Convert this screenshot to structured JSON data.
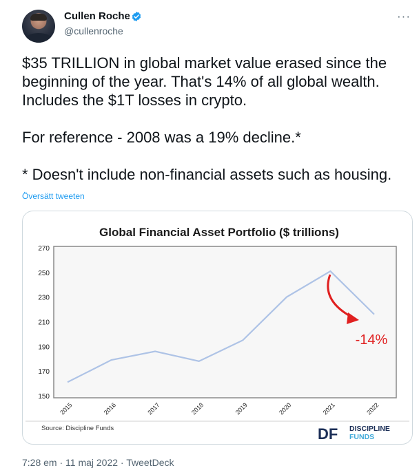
{
  "author": {
    "name": "Cullen Roche",
    "handle": "@cullenroche"
  },
  "menu": {
    "more_label": "···"
  },
  "tweet": {
    "text": "$35 TRILLION in global market value erased since the beginning of the year. That's 14% of all global wealth. Includes the $1T losses in crypto.\n\nFor reference - 2008 was a 19% decline.*\n\n* Doesn't include non-financial assets such as housing.",
    "translate_label": "Översätt tweeten",
    "timestamp": "7:28 em · 11 maj 2022 · TweetDeck"
  },
  "colors": {
    "accent": "#1d9bf0",
    "line": "#aec3e6",
    "annotation": "#e02020",
    "plot_bg": "#f7f7f7"
  },
  "chart_data": {
    "type": "line",
    "title": "Global Financial Asset Portfolio ($ trillions)",
    "source": "Source: Discipline Funds",
    "x": [
      "2015",
      "2016",
      "2017",
      "2018",
      "2019",
      "2020",
      "2021",
      "2022"
    ],
    "y_ticks": [
      150,
      170,
      190,
      210,
      230,
      250,
      270
    ],
    "ylim": [
      150,
      270
    ],
    "series": [
      {
        "values": [
          161,
          179,
          186,
          178,
          195,
          230,
          251,
          216
        ]
      }
    ],
    "annotation": "-14%",
    "logo": {
      "mark": "DF",
      "line1": "DISCIPLINE",
      "line2": "FUNDS"
    },
    "grid": false
  }
}
